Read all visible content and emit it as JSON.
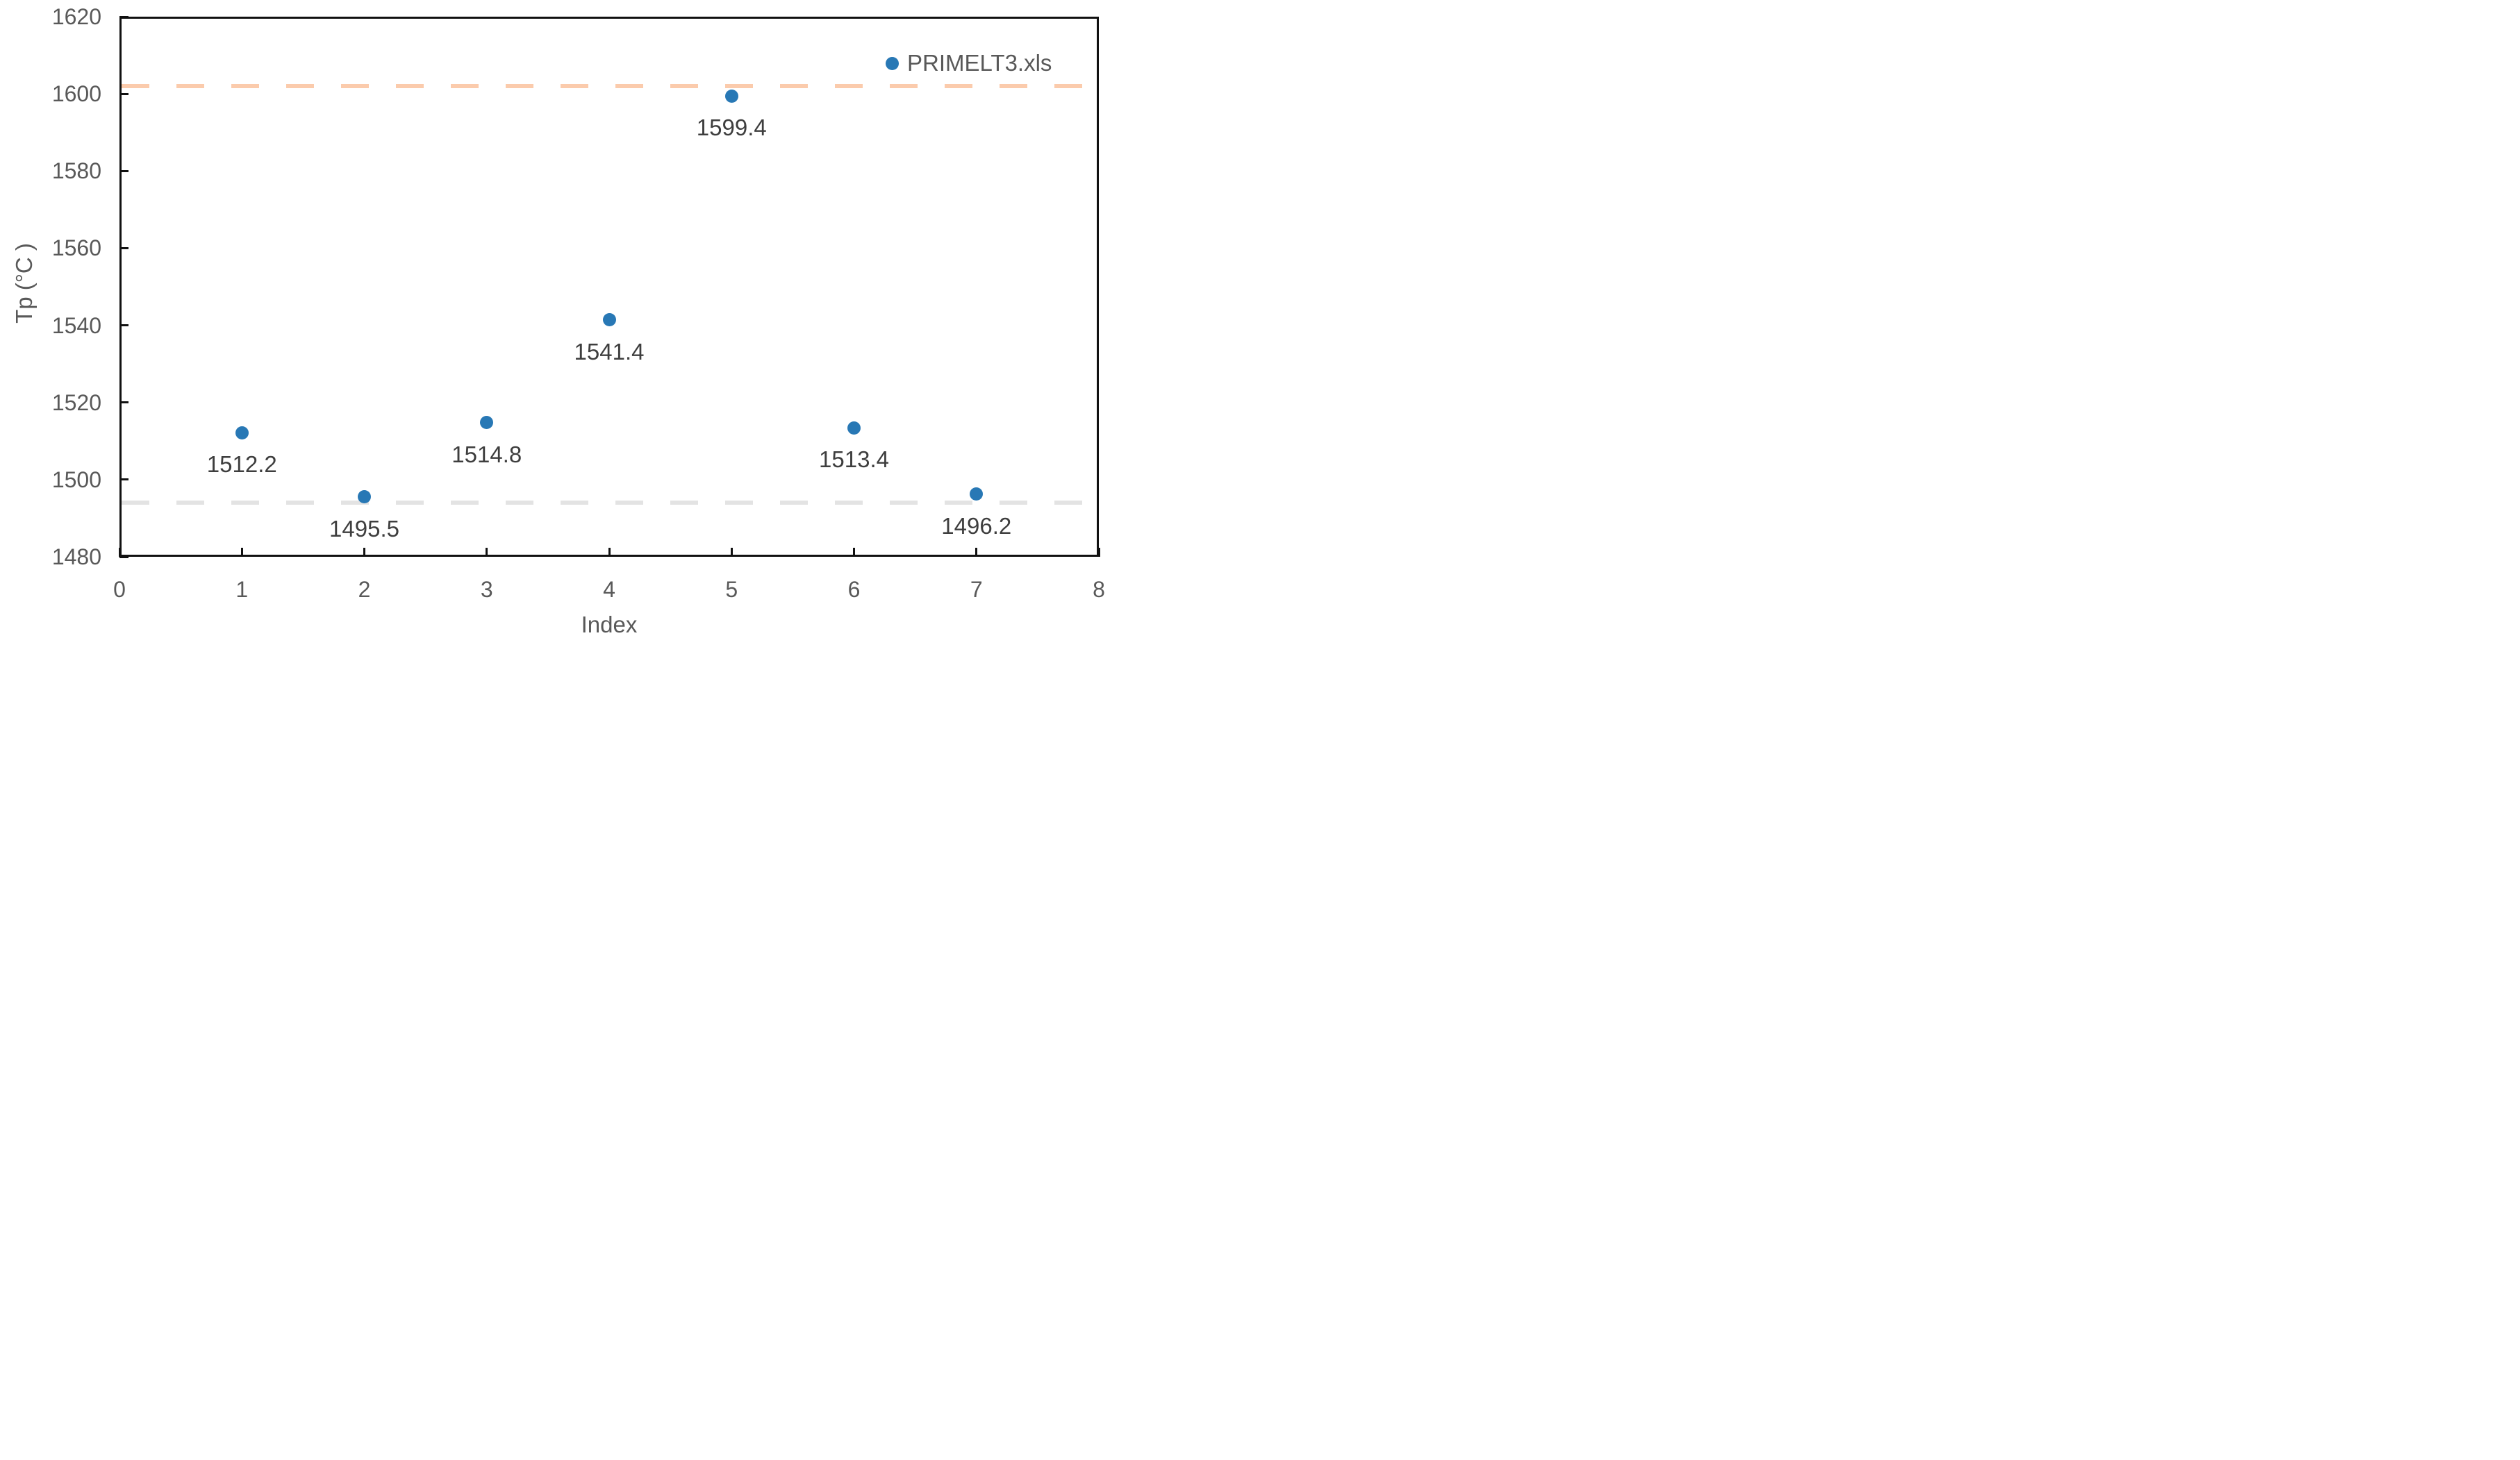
{
  "chart_data": {
    "type": "scatter",
    "xlabel": "Index",
    "ylabel": "Tp (°C )",
    "xlim": [
      0,
      8
    ],
    "ylim": [
      1480,
      1620
    ],
    "x_ticks": [
      0,
      1,
      2,
      3,
      4,
      5,
      6,
      7,
      8
    ],
    "y_ticks": [
      1480,
      1500,
      1520,
      1540,
      1560,
      1580,
      1600,
      1620
    ],
    "grid": false,
    "legend": {
      "label": "PRIMELT3.xls",
      "position": "top-right"
    },
    "series": [
      {
        "name": "PRIMELT3.xls",
        "marker": "circle",
        "color": "#2878B5",
        "x": [
          1,
          2,
          3,
          4,
          5,
          6,
          7
        ],
        "y": [
          1512.2,
          1495.5,
          1514.8,
          1541.4,
          1599.4,
          1513.4,
          1496.2
        ],
        "point_labels": [
          "1512.2",
          "1495.5",
          "1514.8",
          "1541.4",
          "1599.4",
          "1513.4",
          "1496.2"
        ]
      }
    ],
    "reference_lines": [
      {
        "name": "upper-reference",
        "y": 1602,
        "style": "dashed",
        "color": "#FBCBAC"
      },
      {
        "name": "lower-reference",
        "y": 1494,
        "style": "dashed",
        "color": "#E3E3E3"
      }
    ]
  },
  "colors": {
    "background": "#FFFFFF",
    "axis_line": "#111111",
    "tick_label_text": "#595959",
    "axis_title_text": "#595959",
    "data_label_text": "#3E3E3E",
    "marker": "#2878B5",
    "upper_reference": "#FBCBAC",
    "lower_reference": "#E3E3E3"
  }
}
